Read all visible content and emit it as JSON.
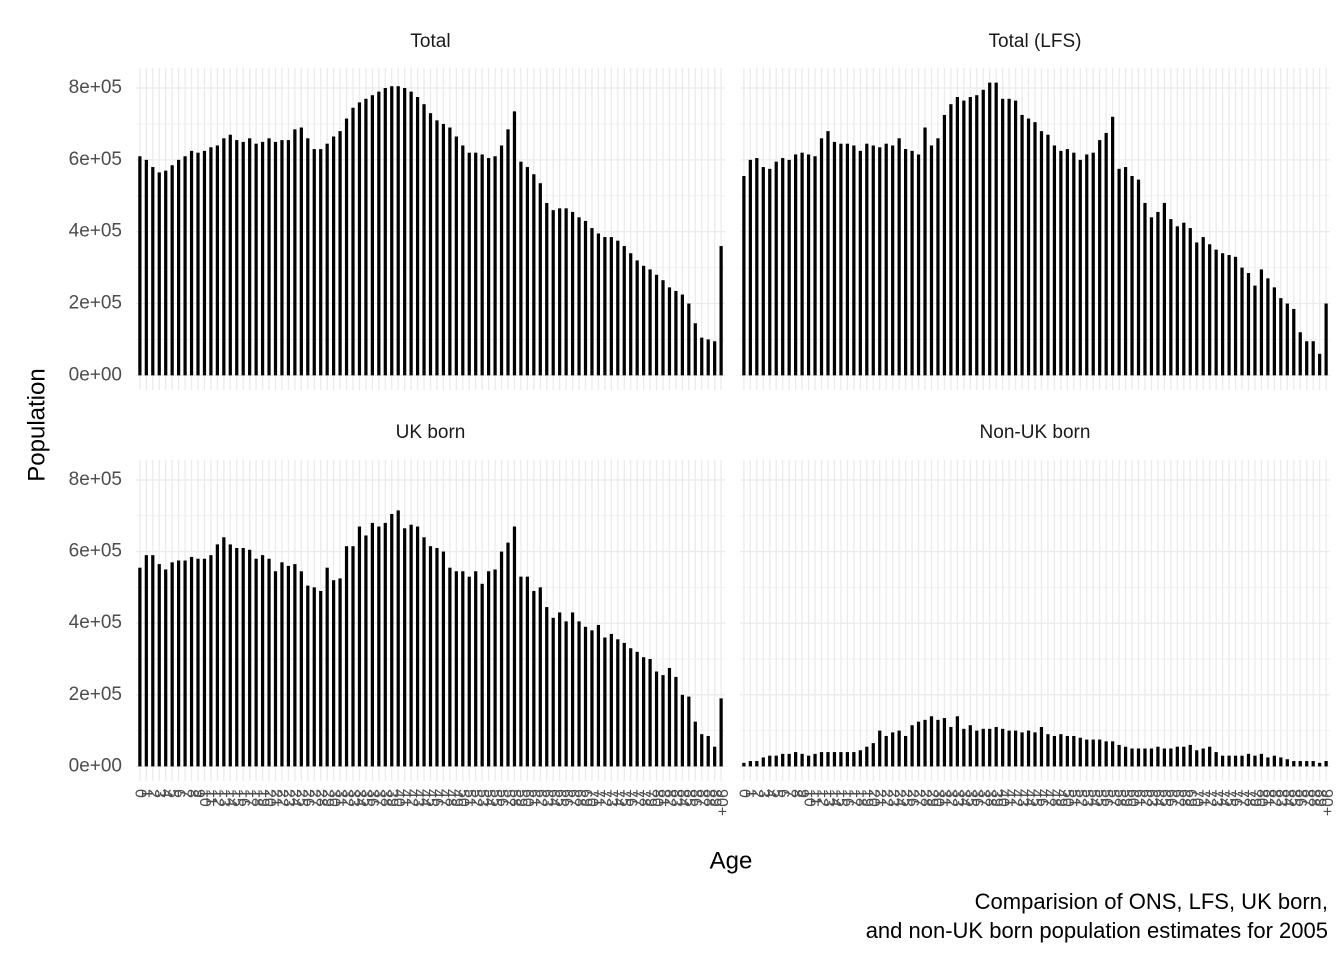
{
  "chart_data": {
    "type": "bar",
    "xlabel": "Age",
    "ylabel": "Population",
    "caption": [
      "Comparision of ONS, LFS, UK born,",
      "and non-UK born population estimates for 2005"
    ],
    "categories": [
      "0",
      "1",
      "2",
      "3",
      "4",
      "5",
      "6",
      "7",
      "8",
      "9",
      "10",
      "11",
      "12",
      "13",
      "14",
      "15",
      "16",
      "17",
      "18",
      "19",
      "20",
      "21",
      "22",
      "23",
      "24",
      "25",
      "26",
      "27",
      "28",
      "29",
      "30",
      "31",
      "32",
      "33",
      "34",
      "35",
      "36",
      "37",
      "38",
      "39",
      "40",
      "41",
      "42",
      "43",
      "44",
      "45",
      "46",
      "47",
      "48",
      "49",
      "50",
      "51",
      "52",
      "53",
      "54",
      "55",
      "56",
      "57",
      "58",
      "59",
      "60",
      "61",
      "62",
      "63",
      "64",
      "65",
      "66",
      "67",
      "68",
      "69",
      "70",
      "71",
      "72",
      "73",
      "74",
      "75",
      "76",
      "77",
      "78",
      "79",
      "80",
      "81",
      "82",
      "83",
      "84",
      "85",
      "86",
      "87",
      "88",
      "89",
      "90+"
    ],
    "ylim": [
      -40750,
      855750
    ],
    "yticks": [
      {
        "value": 0,
        "label": "0e+00"
      },
      {
        "value": 200000,
        "label": "2e+05"
      },
      {
        "value": 400000,
        "label": "4e+05"
      },
      {
        "value": 600000,
        "label": "6e+05"
      },
      {
        "value": 800000,
        "label": "8e+05"
      }
    ],
    "grid": true,
    "color": "#000000",
    "panels": [
      {
        "title": "Total",
        "values": [
          610000,
          600000,
          580000,
          565000,
          570000,
          585000,
          600000,
          610000,
          625000,
          620000,
          625000,
          635000,
          640000,
          660000,
          670000,
          655000,
          650000,
          660000,
          645000,
          650000,
          660000,
          650000,
          655000,
          655000,
          685000,
          690000,
          660000,
          630000,
          630000,
          645000,
          665000,
          680000,
          715000,
          745000,
          760000,
          770000,
          780000,
          790000,
          800000,
          805000,
          805000,
          800000,
          790000,
          775000,
          755000,
          730000,
          710000,
          700000,
          690000,
          665000,
          640000,
          620000,
          620000,
          615000,
          605000,
          610000,
          640000,
          685000,
          735000,
          595000,
          580000,
          560000,
          535000,
          480000,
          460000,
          465000,
          465000,
          455000,
          440000,
          430000,
          410000,
          395000,
          385000,
          385000,
          375000,
          360000,
          340000,
          320000,
          305000,
          295000,
          280000,
          265000,
          245000,
          235000,
          225000,
          200000,
          145000,
          105000,
          100000,
          95000,
          360000
        ]
      },
      {
        "title": "Total (LFS)",
        "values": [
          555000,
          600000,
          605000,
          580000,
          575000,
          595000,
          605000,
          600000,
          615000,
          620000,
          615000,
          610000,
          660000,
          680000,
          650000,
          645000,
          645000,
          640000,
          625000,
          645000,
          640000,
          635000,
          645000,
          640000,
          660000,
          630000,
          625000,
          615000,
          690000,
          640000,
          660000,
          725000,
          755000,
          775000,
          765000,
          775000,
          780000,
          795000,
          815000,
          815000,
          770000,
          770000,
          765000,
          725000,
          715000,
          705000,
          680000,
          670000,
          640000,
          625000,
          630000,
          620000,
          600000,
          615000,
          620000,
          655000,
          675000,
          720000,
          575000,
          580000,
          555000,
          545000,
          480000,
          440000,
          455000,
          480000,
          435000,
          415000,
          425000,
          410000,
          370000,
          385000,
          365000,
          350000,
          340000,
          335000,
          330000,
          300000,
          285000,
          250000,
          295000,
          270000,
          245000,
          215000,
          200000,
          185000,
          120000,
          95000,
          95000,
          60000,
          200000
        ]
      },
      {
        "title": "UK born",
        "values": [
          555000,
          590000,
          590000,
          565000,
          550000,
          570000,
          575000,
          575000,
          585000,
          580000,
          580000,
          590000,
          620000,
          640000,
          620000,
          610000,
          610000,
          605000,
          580000,
          590000,
          580000,
          545000,
          570000,
          560000,
          565000,
          545000,
          505000,
          500000,
          490000,
          555000,
          520000,
          525000,
          615000,
          615000,
          670000,
          645000,
          680000,
          670000,
          680000,
          705000,
          715000,
          665000,
          675000,
          670000,
          640000,
          615000,
          610000,
          600000,
          555000,
          545000,
          545000,
          530000,
          545000,
          510000,
          545000,
          550000,
          600000,
          625000,
          670000,
          530000,
          530000,
          490000,
          500000,
          445000,
          415000,
          430000,
          405000,
          430000,
          405000,
          390000,
          380000,
          395000,
          360000,
          370000,
          355000,
          345000,
          330000,
          320000,
          305000,
          300000,
          265000,
          255000,
          275000,
          250000,
          200000,
          195000,
          125000,
          90000,
          85000,
          55000,
          190000
        ]
      },
      {
        "title": "Non-UK born",
        "values": [
          10000,
          15000,
          15000,
          25000,
          30000,
          30000,
          35000,
          35000,
          40000,
          35000,
          30000,
          35000,
          40000,
          40000,
          40000,
          40000,
          40000,
          40000,
          45000,
          55000,
          65000,
          100000,
          85000,
          95000,
          100000,
          85000,
          115000,
          125000,
          130000,
          140000,
          130000,
          135000,
          110000,
          140000,
          105000,
          115000,
          100000,
          105000,
          105000,
          110000,
          105000,
          100000,
          100000,
          95000,
          100000,
          95000,
          110000,
          90000,
          85000,
          90000,
          85000,
          85000,
          80000,
          75000,
          75000,
          75000,
          70000,
          70000,
          60000,
          55000,
          50000,
          50000,
          50000,
          50000,
          55000,
          50000,
          50000,
          55000,
          55000,
          60000,
          45000,
          50000,
          55000,
          40000,
          30000,
          30000,
          30000,
          30000,
          35000,
          30000,
          35000,
          25000,
          30000,
          25000,
          20000,
          15000,
          15000,
          15000,
          15000,
          10000,
          15000
        ]
      }
    ]
  }
}
